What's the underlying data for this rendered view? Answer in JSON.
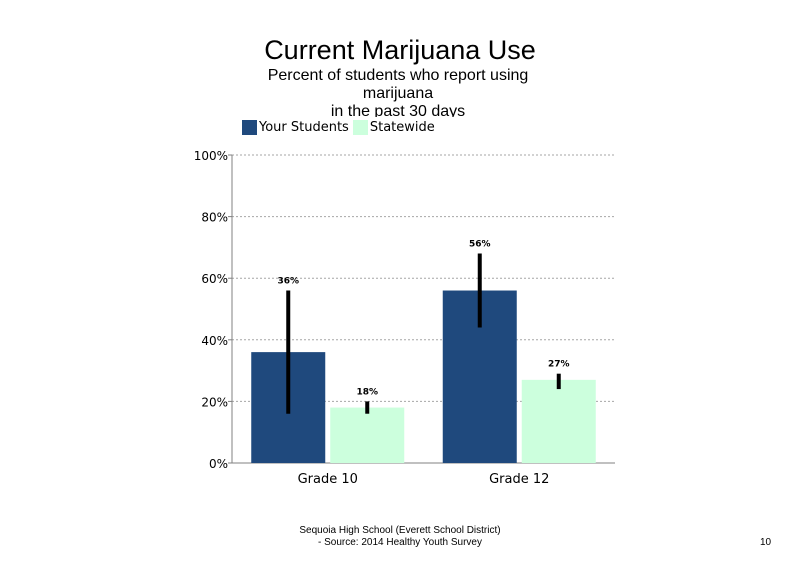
{
  "title": "Current Marijuana Use",
  "subtitle_lines": [
    "Percent of students who report using",
    "marijuana",
    "in the past 30 days"
  ],
  "footer_lines": [
    "Sequoia High School (Everett School District)",
    "- Source: 2014 Healthy Youth Survey"
  ],
  "page_number": "10",
  "colors": {
    "your_students": "#1f497d",
    "statewide": "#ccffdd",
    "error_bar": "#000000",
    "grid": "#a6a6a6"
  },
  "chart_data": {
    "type": "bar",
    "categories": [
      "Grade 10",
      "Grade 12"
    ],
    "series": [
      {
        "name": "Your Students",
        "values": [
          36,
          56
        ],
        "labels": [
          "36%",
          "56%"
        ],
        "error_low": [
          16,
          44
        ],
        "error_high": [
          56,
          68
        ]
      },
      {
        "name": "Statewide",
        "values": [
          18,
          27
        ],
        "labels": [
          "18%",
          "27%"
        ],
        "error_low": [
          16,
          24
        ],
        "error_high": [
          20,
          29
        ]
      }
    ],
    "ylim": [
      0,
      100
    ],
    "yticks": [
      0,
      20,
      40,
      60,
      80,
      100
    ],
    "ytick_labels": [
      "0%",
      "20%",
      "40%",
      "60%",
      "80%",
      "100%"
    ],
    "grid": true,
    "legend": "top-left"
  }
}
